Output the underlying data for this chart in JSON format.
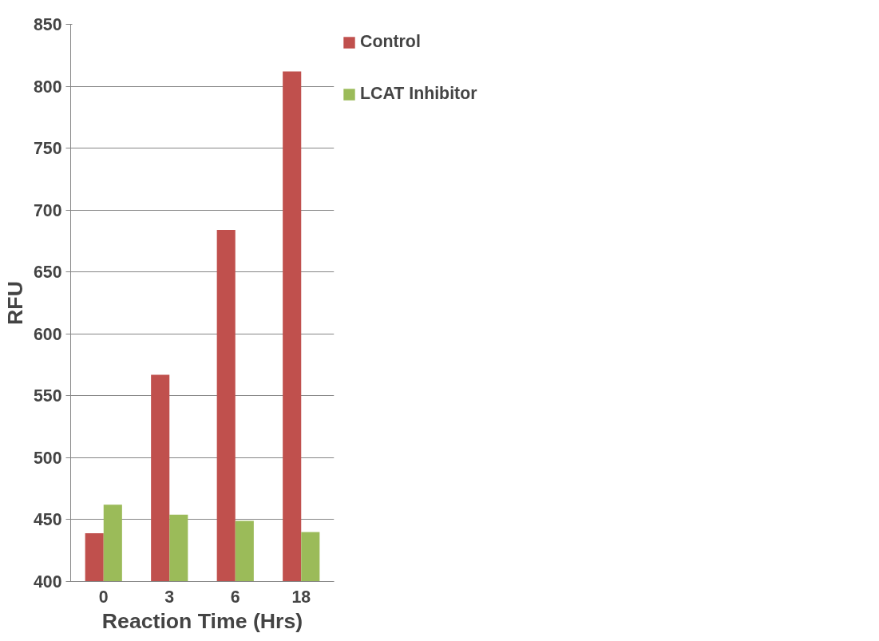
{
  "chart_data": {
    "type": "bar",
    "xlabel": "Reaction Time (Hrs)",
    "ylabel": "RFU",
    "categories": [
      "0",
      "3",
      "6",
      "18"
    ],
    "series": [
      {
        "name": "Control",
        "color": "#c0504d",
        "values": [
          439,
          567,
          684,
          812
        ]
      },
      {
        "name": "LCAT Inhibitor",
        "color": "#9bbb59",
        "values": [
          462,
          454,
          449,
          440
        ]
      }
    ],
    "ylim": [
      400,
      850
    ],
    "yticks": [
      400,
      450,
      500,
      550,
      600,
      650,
      700,
      750,
      800,
      850
    ],
    "grid": "y",
    "legend": "top right"
  }
}
